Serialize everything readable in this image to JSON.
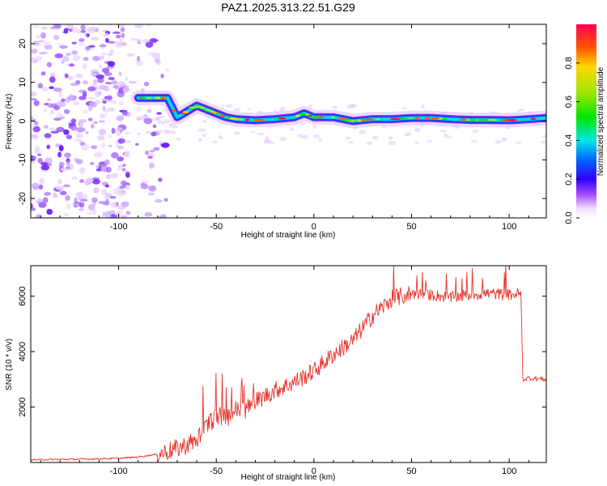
{
  "figure_title": "PAZ1.2025.313.22.51.G29",
  "chart_data": [
    {
      "type": "heatmap",
      "title": "PAZ1.2025.313.22.51.G29",
      "xlabel": "Height of straight line (km)",
      "ylabel": "Frequency (Hz)",
      "xlim": [
        -145,
        119
      ],
      "ylim": [
        -25,
        25
      ],
      "xticks": [
        -100,
        -50,
        0,
        50,
        100
      ],
      "yticks": [
        -20,
        -10,
        0,
        10,
        20
      ],
      "colorbar": {
        "label": "Normalized spectral amplitude",
        "range": [
          0,
          1
        ],
        "ticks": [
          0.0,
          0.2,
          0.4,
          0.6,
          0.8
        ]
      },
      "ridge": {
        "description_points_x": [
          -90,
          -75,
          -70,
          -65,
          -60,
          -55,
          -50,
          -45,
          -40,
          -30,
          -20,
          -10,
          -5,
          0,
          10,
          20,
          30,
          40,
          50,
          60,
          70,
          80,
          90,
          100,
          110,
          119
        ],
        "description_points_freq": [
          6.0,
          6.0,
          1.0,
          2.5,
          4.0,
          3.0,
          2.0,
          1.0,
          0.5,
          0.2,
          0.5,
          1.0,
          2.0,
          1.0,
          1.0,
          0.0,
          0.5,
          0.5,
          0.8,
          0.8,
          0.5,
          0.3,
          0.3,
          0.2,
          0.5,
          0.8
        ]
      },
      "noise_region_x": [
        -145,
        -85
      ]
    },
    {
      "type": "line",
      "xlabel": "Height of straight line (km)",
      "ylabel": "SNR (10 * v/v)",
      "xlim": [
        -145,
        119
      ],
      "ylim": [
        0,
        7100
      ],
      "xticks": [
        -100,
        -50,
        0,
        50,
        100
      ],
      "yticks": [
        2000,
        4000,
        6000
      ],
      "color": "#e8332a",
      "series": [
        {
          "name": "SNR",
          "x": [
            -145,
            -120,
            -100,
            -90,
            -80,
            -70,
            -60,
            -55,
            -50,
            -45,
            -40,
            -35,
            -30,
            -20,
            -10,
            0,
            10,
            20,
            30,
            40,
            50,
            60,
            70,
            80,
            90,
            100,
            106,
            107,
            110,
            119
          ],
          "y": [
            100,
            120,
            150,
            200,
            300,
            500,
            800,
            1300,
            1700,
            1600,
            1900,
            1900,
            2200,
            2600,
            2900,
            3300,
            3900,
            4400,
            5300,
            5900,
            6100,
            6050,
            5950,
            6050,
            6100,
            6050,
            6100,
            3000,
            3050,
            3000
          ]
        }
      ]
    }
  ]
}
